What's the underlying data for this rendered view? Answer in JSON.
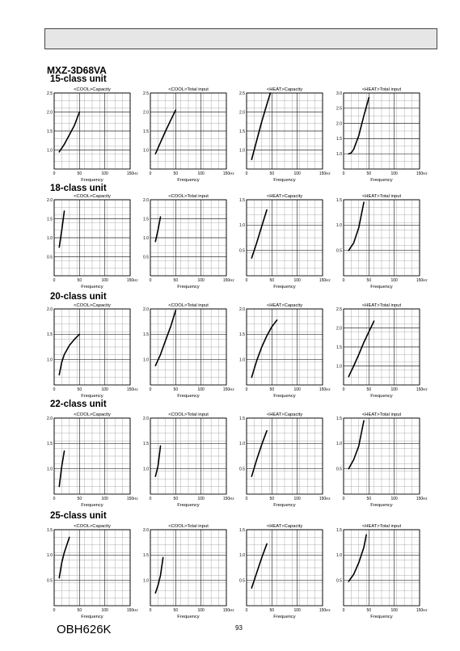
{
  "page": {
    "model": "MXZ-3D68VA",
    "doc_number": "OBH626K",
    "page_number": "93",
    "header_band": ""
  },
  "sections": [
    {
      "label": "15-class unit"
    },
    {
      "label": "18-class unit"
    },
    {
      "label": "20-class unit"
    },
    {
      "label": "22-class unit"
    },
    {
      "label": "25-class unit"
    }
  ],
  "chart_data": [
    {
      "type": "line",
      "section": "15-class unit",
      "title": "<COOL>Capacity",
      "xlabel": "Frequency",
      "x_unit": "Hz",
      "xlim": [
        0,
        150
      ],
      "xticks": [
        0,
        50,
        100,
        150
      ],
      "ylim": [
        0.5,
        2.5
      ],
      "yticks": [
        1.0,
        1.5,
        2.0,
        2.5
      ],
      "grid": true,
      "series": [
        {
          "x": [
            10,
            20,
            30,
            40,
            50
          ],
          "y": [
            0.95,
            1.15,
            1.4,
            1.65,
            2.0
          ]
        }
      ]
    },
    {
      "type": "line",
      "section": "15-class unit",
      "title": "<COOL>Total input",
      "xlabel": "Frequency",
      "x_unit": "Hz",
      "xlim": [
        0,
        150
      ],
      "xticks": [
        0,
        50,
        100,
        150
      ],
      "ylim": [
        0.5,
        2.5
      ],
      "yticks": [
        1.0,
        1.5,
        2.0,
        2.5
      ],
      "grid": true,
      "series": [
        {
          "x": [
            10,
            20,
            30,
            40,
            50
          ],
          "y": [
            0.9,
            1.2,
            1.5,
            1.78,
            2.05
          ]
        }
      ]
    },
    {
      "type": "line",
      "section": "15-class unit",
      "title": "<HEAT>Capacity",
      "xlabel": "Frequency",
      "x_unit": "Hz",
      "xlim": [
        0,
        150
      ],
      "xticks": [
        0,
        50,
        100,
        150
      ],
      "ylim": [
        0.5,
        2.5
      ],
      "yticks": [
        1.0,
        1.5,
        2.0,
        2.5
      ],
      "grid": true,
      "series": [
        {
          "x": [
            10,
            20,
            30,
            40,
            47
          ],
          "y": [
            0.75,
            1.25,
            1.75,
            2.2,
            2.5
          ]
        }
      ]
    },
    {
      "type": "line",
      "section": "15-class unit",
      "title": "<HEAT>Total input",
      "xlabel": "Frequency",
      "x_unit": "Hz",
      "xlim": [
        0,
        150
      ],
      "xticks": [
        0,
        50,
        100,
        150
      ],
      "ylim": [
        0.5,
        3.0
      ],
      "yticks": [
        1.0,
        1.5,
        2.0,
        2.5,
        3.0
      ],
      "grid": true,
      "series": [
        {
          "x": [
            10,
            15,
            20,
            30,
            40,
            50
          ],
          "y": [
            1.0,
            1.03,
            1.15,
            1.6,
            2.25,
            2.85
          ]
        }
      ]
    },
    {
      "type": "line",
      "section": "18-class unit",
      "title": "<COOL>Capacity",
      "xlabel": "Frequency",
      "x_unit": "Hz",
      "xlim": [
        0,
        150
      ],
      "xticks": [
        0,
        50,
        100,
        150
      ],
      "ylim": [
        0.0,
        2.0
      ],
      "yticks": [
        0.5,
        1.0,
        1.5,
        2.0
      ],
      "grid": true,
      "series": [
        {
          "x": [
            10,
            15,
            20
          ],
          "y": [
            0.75,
            1.2,
            1.7
          ]
        }
      ]
    },
    {
      "type": "line",
      "section": "18-class unit",
      "title": "<COOL>Total input",
      "xlabel": "Frequency",
      "x_unit": "Hz",
      "xlim": [
        0,
        150
      ],
      "xticks": [
        0,
        50,
        100,
        150
      ],
      "ylim": [
        0.0,
        2.0
      ],
      "yticks": [
        0.5,
        1.0,
        1.5,
        2.0
      ],
      "grid": true,
      "series": [
        {
          "x": [
            10,
            15,
            20
          ],
          "y": [
            0.9,
            1.2,
            1.55
          ]
        }
      ]
    },
    {
      "type": "line",
      "section": "18-class unit",
      "title": "<HEAT>Capacity",
      "xlabel": "Frequency",
      "x_unit": "Hz",
      "xlim": [
        0,
        150
      ],
      "xticks": [
        0,
        50,
        100,
        150
      ],
      "ylim": [
        0.0,
        1.5
      ],
      "yticks": [
        0.5,
        1.0,
        1.5
      ],
      "grid": true,
      "series": [
        {
          "x": [
            10,
            20,
            30,
            40
          ],
          "y": [
            0.35,
            0.65,
            0.98,
            1.3
          ]
        }
      ]
    },
    {
      "type": "line",
      "section": "18-class unit",
      "title": "<HEAT>Total input",
      "xlabel": "Frequency",
      "x_unit": "Hz",
      "xlim": [
        0,
        150
      ],
      "xticks": [
        0,
        50,
        100,
        150
      ],
      "ylim": [
        0.0,
        1.5
      ],
      "yticks": [
        0.5,
        1.0,
        1.5
      ],
      "grid": true,
      "series": [
        {
          "x": [
            10,
            20,
            30,
            40
          ],
          "y": [
            0.5,
            0.65,
            0.95,
            1.45
          ]
        }
      ]
    },
    {
      "type": "line",
      "section": "20-class unit",
      "title": "<COOL>Capacity",
      "xlabel": "Frequency",
      "x_unit": "Hz",
      "xlim": [
        0,
        150
      ],
      "xticks": [
        0,
        50,
        100,
        150
      ],
      "ylim": [
        0.5,
        2.0
      ],
      "yticks": [
        1.0,
        1.5,
        2.0
      ],
      "grid": true,
      "series": [
        {
          "x": [
            10,
            15,
            20,
            30,
            40,
            50
          ],
          "y": [
            0.7,
            0.95,
            1.1,
            1.28,
            1.4,
            1.5
          ]
        }
      ]
    },
    {
      "type": "line",
      "section": "20-class unit",
      "title": "<COOL>Total input",
      "xlabel": "Frequency",
      "x_unit": "Hz",
      "xlim": [
        0,
        150
      ],
      "xticks": [
        0,
        50,
        100,
        150
      ],
      "ylim": [
        0.5,
        2.0
      ],
      "yticks": [
        1.0,
        1.5,
        2.0
      ],
      "grid": true,
      "series": [
        {
          "x": [
            10,
            20,
            30,
            40,
            50
          ],
          "y": [
            0.88,
            1.1,
            1.38,
            1.65,
            1.97
          ]
        }
      ]
    },
    {
      "type": "line",
      "section": "20-class unit",
      "title": "<HEAT>Capacity",
      "xlabel": "Frequency",
      "x_unit": "Hz",
      "xlim": [
        0,
        150
      ],
      "xticks": [
        0,
        50,
        100,
        150
      ],
      "ylim": [
        0.5,
        2.0
      ],
      "yticks": [
        1.0,
        1.5,
        2.0
      ],
      "grid": true,
      "series": [
        {
          "x": [
            10,
            20,
            30,
            40,
            50,
            60
          ],
          "y": [
            0.65,
            0.98,
            1.25,
            1.47,
            1.65,
            1.78
          ]
        }
      ]
    },
    {
      "type": "line",
      "section": "20-class unit",
      "title": "<HEAT>Total input",
      "xlabel": "Frequency",
      "x_unit": "Hz",
      "xlim": [
        0,
        150
      ],
      "xticks": [
        0,
        50,
        100,
        150
      ],
      "ylim": [
        0.5,
        2.5
      ],
      "yticks": [
        1.0,
        1.5,
        2.0,
        2.5
      ],
      "grid": true,
      "series": [
        {
          "x": [
            10,
            20,
            30,
            40,
            50,
            60
          ],
          "y": [
            0.72,
            1.0,
            1.3,
            1.62,
            1.9,
            2.18
          ]
        }
      ]
    },
    {
      "type": "line",
      "section": "22-class unit",
      "title": "<COOL>Capacity",
      "xlabel": "Frequency",
      "x_unit": "Hz",
      "xlim": [
        0,
        150
      ],
      "xticks": [
        0,
        50,
        100,
        150
      ],
      "ylim": [
        0.5,
        2.0
      ],
      "yticks": [
        1.0,
        1.5,
        2.0
      ],
      "grid": true,
      "series": [
        {
          "x": [
            10,
            15,
            20
          ],
          "y": [
            0.65,
            1.05,
            1.35
          ]
        }
      ]
    },
    {
      "type": "line",
      "section": "22-class unit",
      "title": "<COOL>Total input",
      "xlabel": "Frequency",
      "x_unit": "Hz",
      "xlim": [
        0,
        150
      ],
      "xticks": [
        0,
        50,
        100,
        150
      ],
      "ylim": [
        0.5,
        2.0
      ],
      "yticks": [
        1.0,
        1.5,
        2.0
      ],
      "grid": true,
      "series": [
        {
          "x": [
            10,
            15,
            20
          ],
          "y": [
            0.85,
            1.05,
            1.45
          ]
        }
      ]
    },
    {
      "type": "line",
      "section": "22-class unit",
      "title": "<HEAT>Capacity",
      "xlabel": "Frequency",
      "x_unit": "Hz",
      "xlim": [
        0,
        150
      ],
      "xticks": [
        0,
        50,
        100,
        150
      ],
      "ylim": [
        0.0,
        1.5
      ],
      "yticks": [
        0.5,
        1.0,
        1.5
      ],
      "grid": true,
      "series": [
        {
          "x": [
            10,
            20,
            30,
            40
          ],
          "y": [
            0.35,
            0.68,
            0.98,
            1.25
          ]
        }
      ]
    },
    {
      "type": "line",
      "section": "22-class unit",
      "title": "<HEAT>Total input",
      "xlabel": "Frequency",
      "x_unit": "Hz",
      "xlim": [
        0,
        150
      ],
      "xticks": [
        0,
        50,
        100,
        150
      ],
      "ylim": [
        0.0,
        1.5
      ],
      "yticks": [
        0.5,
        1.0,
        1.5
      ],
      "grid": true,
      "series": [
        {
          "x": [
            10,
            20,
            30,
            40
          ],
          "y": [
            0.5,
            0.68,
            0.95,
            1.45
          ]
        }
      ]
    },
    {
      "type": "line",
      "section": "25-class unit",
      "title": "<COOL>Capacity",
      "xlabel": "Frequency",
      "x_unit": "Hz",
      "xlim": [
        0,
        150
      ],
      "xticks": [
        0,
        50,
        100,
        150
      ],
      "ylim": [
        0.0,
        1.5
      ],
      "yticks": [
        0.5,
        1.0,
        1.5
      ],
      "grid": true,
      "series": [
        {
          "x": [
            10,
            15,
            20,
            30
          ],
          "y": [
            0.55,
            0.85,
            1.05,
            1.35
          ]
        }
      ]
    },
    {
      "type": "line",
      "section": "25-class unit",
      "title": "<COOL>Total input",
      "xlabel": "Frequency",
      "x_unit": "Hz",
      "xlim": [
        0,
        150
      ],
      "xticks": [
        0,
        50,
        100,
        150
      ],
      "ylim": [
        0.5,
        2.0
      ],
      "yticks": [
        1.0,
        1.5,
        2.0
      ],
      "grid": true,
      "series": [
        {
          "x": [
            10,
            15,
            20,
            25
          ],
          "y": [
            0.75,
            0.9,
            1.1,
            1.45
          ]
        }
      ]
    },
    {
      "type": "line",
      "section": "25-class unit",
      "title": "<HEAT>Capacity",
      "xlabel": "Frequency",
      "x_unit": "Hz",
      "xlim": [
        0,
        150
      ],
      "xticks": [
        0,
        50,
        100,
        150
      ],
      "ylim": [
        0.0,
        1.5
      ],
      "yticks": [
        0.5,
        1.0,
        1.5
      ],
      "grid": true,
      "series": [
        {
          "x": [
            10,
            20,
            30,
            40
          ],
          "y": [
            0.35,
            0.65,
            0.95,
            1.22
          ]
        }
      ]
    },
    {
      "type": "line",
      "section": "25-class unit",
      "title": "<HEAT>Total input",
      "xlabel": "Frequency",
      "x_unit": "Hz",
      "xlim": [
        0,
        150
      ],
      "xticks": [
        0,
        50,
        100,
        150
      ],
      "ylim": [
        0.0,
        1.5
      ],
      "yticks": [
        0.5,
        1.0,
        1.5
      ],
      "grid": true,
      "series": [
        {
          "x": [
            10,
            20,
            30,
            40,
            45
          ],
          "y": [
            0.48,
            0.62,
            0.85,
            1.15,
            1.4
          ]
        }
      ]
    }
  ]
}
